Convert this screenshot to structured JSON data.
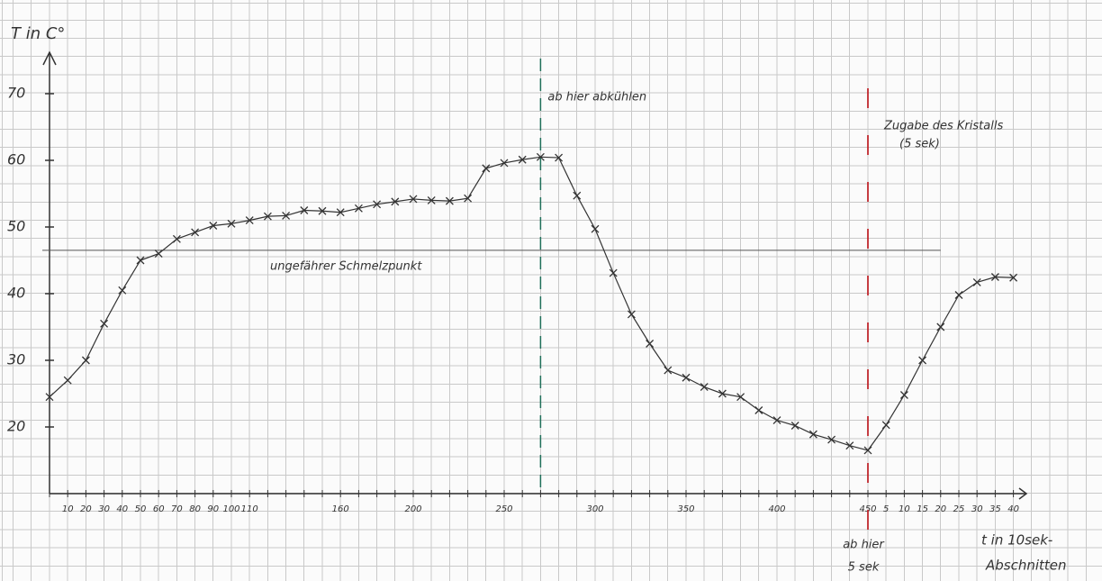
{
  "chart_data": {
    "type": "line",
    "y_label": "T in C°",
    "x_label": [
      "t in 10sek-",
      "Abschnitten"
    ],
    "categories": [
      null,
      "10",
      "20",
      "30",
      "40",
      "50",
      "60",
      "70",
      "80",
      "90",
      "100",
      "110",
      null,
      null,
      null,
      null,
      "160",
      null,
      null,
      null,
      "200",
      null,
      null,
      null,
      null,
      "250",
      null,
      null,
      null,
      null,
      "300",
      null,
      null,
      null,
      null,
      "350",
      null,
      null,
      null,
      null,
      "400",
      null,
      null,
      null,
      null,
      "450",
      "5",
      "10",
      "15",
      "20",
      "25",
      "30",
      "35",
      "40"
    ],
    "values": [
      24.5,
      27,
      30,
      35.5,
      40.5,
      45,
      46,
      48.2,
      49.2,
      50.2,
      50.5,
      51,
      51.6,
      51.7,
      52.5,
      52.4,
      52.2,
      52.8,
      53.4,
      53.8,
      54.2,
      54,
      53.9,
      54.3,
      58.8,
      59.6,
      60.1,
      60.5,
      60.4,
      54.7,
      49.7,
      43.1,
      36.9,
      32.5,
      28.5,
      27.4,
      26,
      25,
      24.5,
      22.5,
      21,
      20.2,
      18.9,
      18.1,
      17.2,
      16.5,
      20.3,
      24.8,
      30,
      35,
      39.8,
      41.7,
      42.5,
      42.4
    ],
    "color": "#333333",
    "ylim": [
      10,
      75
    ],
    "yticks": [
      20,
      30,
      40,
      50,
      60,
      70
    ],
    "reference_line": {
      "value": 46.5,
      "label": "ungefährer Schmelzpunkt"
    },
    "annotations": [
      {
        "lines": [
          "ab hier abkühlen"
        ],
        "color": "#1f6f5a"
      },
      {
        "lines": [
          "Zugabe des Kristalls",
          "(5 sek)"
        ],
        "color": "#c0282d"
      },
      {
        "lines": [
          "ab hier",
          "5 sek"
        ],
        "color": "#333333"
      }
    ]
  }
}
